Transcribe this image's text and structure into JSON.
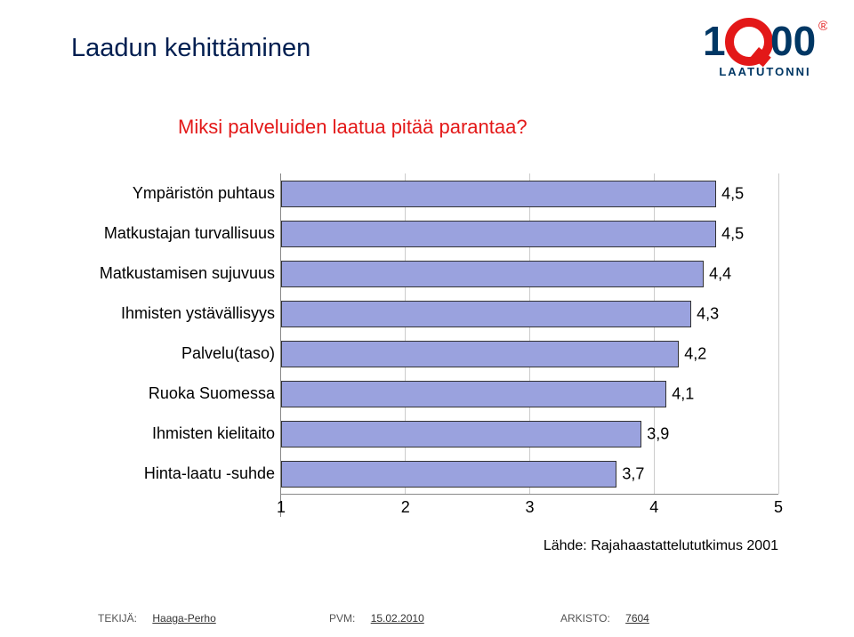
{
  "title": "Laadun kehittäminen",
  "title_color": "#001e50",
  "subtitle": "Miksi palveluiden laatua pitää parantaa?",
  "subtitle_color": "#e31818",
  "logo": {
    "text": "LAATUTONNI",
    "text_color": "#003764",
    "q_color": "#e31818",
    "num_color": "#003764"
  },
  "chart": {
    "type": "bar-horizontal",
    "xmin": 1,
    "xmax": 5,
    "xticks": [
      1,
      2,
      3,
      4,
      5
    ],
    "bar_color": "#9aa2de",
    "bar_border": "#333333",
    "grid_color": "#cccccc",
    "label_fontsize": 18,
    "value_fontsize": 18,
    "bars": [
      {
        "label": "Ympäristön puhtaus",
        "value": 4.5,
        "value_label": "4,5"
      },
      {
        "label": "Matkustajan turvallisuus",
        "value": 4.5,
        "value_label": "4,5"
      },
      {
        "label": "Matkustamisen sujuvuus",
        "value": 4.4,
        "value_label": "4,4"
      },
      {
        "label": "Ihmisten ystävällisyys",
        "value": 4.3,
        "value_label": "4,3"
      },
      {
        "label": "Palvelu(taso)",
        "value": 4.2,
        "value_label": "4,2"
      },
      {
        "label": "Ruoka Suomessa",
        "value": 4.1,
        "value_label": "4,1"
      },
      {
        "label": "Ihmisten kielitaito",
        "value": 3.9,
        "value_label": "3,9"
      },
      {
        "label": "Hinta-laatu -suhde",
        "value": 3.7,
        "value_label": "3,7"
      }
    ]
  },
  "source_label": "Lähde: Rajahaastattelututkimus 2001",
  "footer": {
    "author_key": "TEKIJÄ:",
    "author": "Haaga-Perho",
    "date_key": "PVM:",
    "date": "15.02.2010",
    "arch_key": "ARKISTO:",
    "arch": "7604"
  }
}
